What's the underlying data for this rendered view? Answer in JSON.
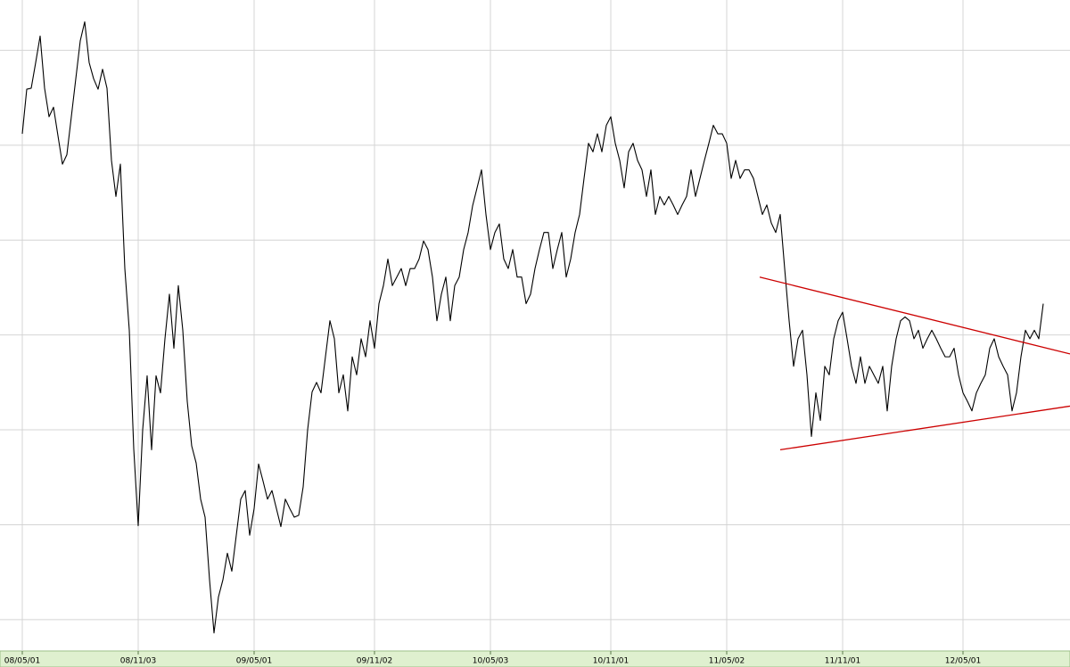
{
  "chart_data": {
    "type": "line",
    "categories": [
      "08/05/01",
      null,
      null,
      null,
      null,
      null,
      null,
      null,
      null,
      null,
      null,
      null,
      null,
      null,
      null,
      null,
      null,
      null,
      null,
      null,
      null,
      null,
      null,
      null,
      null,
      null,
      "08/11/03",
      null,
      null,
      null,
      null,
      null,
      null,
      null,
      null,
      null,
      null,
      null,
      null,
      null,
      null,
      null,
      null,
      null,
      null,
      null,
      null,
      null,
      null,
      null,
      null,
      null,
      "09/05/01",
      null,
      null,
      null,
      null,
      null,
      null,
      null,
      null,
      null,
      null,
      null,
      null,
      null,
      null,
      null,
      null,
      null,
      null,
      null,
      null,
      null,
      null,
      null,
      null,
      null,
      null,
      "09/11/02",
      null,
      null,
      null,
      null,
      null,
      null,
      null,
      null,
      null,
      null,
      null,
      null,
      null,
      null,
      null,
      null,
      null,
      null,
      null,
      null,
      null,
      null,
      null,
      null,
      null,
      "10/05/03",
      null,
      null,
      null,
      null,
      null,
      null,
      null,
      null,
      null,
      null,
      null,
      null,
      null,
      null,
      null,
      null,
      null,
      null,
      null,
      null,
      null,
      null,
      null,
      null,
      null,
      null,
      "10/11/01",
      null,
      null,
      null,
      null,
      null,
      null,
      null,
      null,
      null,
      null,
      null,
      null,
      null,
      null,
      null,
      null,
      null,
      null,
      null,
      null,
      null,
      null,
      null,
      null,
      null,
      "11/05/02",
      null,
      null,
      null,
      null,
      null,
      null,
      null,
      null,
      null,
      null,
      null,
      null,
      null,
      null,
      null,
      null,
      null,
      null,
      null,
      null,
      null,
      null,
      null,
      null,
      null,
      "11/11/01",
      null,
      null,
      null,
      null,
      null,
      null,
      null,
      null,
      null,
      null,
      null,
      null,
      null,
      null,
      null,
      null,
      null,
      null,
      null,
      null,
      null,
      null,
      null,
      null,
      null,
      null,
      "12/05/01",
      null,
      null,
      null,
      null,
      null,
      null,
      null,
      null,
      null,
      null,
      null,
      null,
      null,
      null,
      null,
      null,
      null,
      null
    ],
    "series": [
      {
        "color": "#000000",
        "values": [
          61.2,
          65.9,
          66,
          68.7,
          71.5,
          66,
          63,
          64,
          61,
          58,
          59,
          63,
          67,
          71,
          73,
          68.7,
          67,
          65.9,
          68,
          66,
          58.4,
          54.6,
          58,
          47,
          40.5,
          28,
          19.9,
          30,
          35.7,
          27.9,
          35.7,
          33.9,
          39.6,
          44.3,
          38.6,
          45.2,
          40.5,
          33,
          28.3,
          26.5,
          22.7,
          20.8,
          14.2,
          8.6,
          12.4,
          14.2,
          17,
          15.1,
          18.9,
          22.7,
          23.6,
          18.9,
          21.7,
          26.4,
          24.6,
          22.7,
          23.6,
          21.7,
          19.8,
          22.7,
          21.7,
          20.8,
          21,
          24,
          30,
          34,
          35,
          33.9,
          37.7,
          41.5,
          39.6,
          33.9,
          35.8,
          32,
          37.7,
          35.8,
          39.6,
          37.7,
          41.5,
          38.6,
          43.3,
          45.2,
          48,
          45.2,
          46.1,
          47,
          45.2,
          47,
          47,
          48,
          49.9,
          49,
          46.1,
          41.5,
          44.3,
          46.1,
          41.5,
          45.2,
          46.1,
          49,
          50.8,
          53.6,
          55.5,
          57.4,
          52.7,
          49,
          50.8,
          51.7,
          48,
          47,
          49,
          46.1,
          46.1,
          43.3,
          44.3,
          47,
          49,
          50.8,
          50.8,
          47,
          49,
          50.8,
          46.1,
          48,
          50.8,
          52.7,
          56.5,
          60.2,
          59.3,
          61.2,
          59.3,
          62.1,
          63,
          60.2,
          58.4,
          55.5,
          59.3,
          60.2,
          58.4,
          57.4,
          54.6,
          57.4,
          52.7,
          54.6,
          53.7,
          54.6,
          53.7,
          52.7,
          53.7,
          54.6,
          57.4,
          54.6,
          56.5,
          58.4,
          60.2,
          62.1,
          61.2,
          61.2,
          60.2,
          56.5,
          58.4,
          56.5,
          57.4,
          57.4,
          56.5,
          54.6,
          52.7,
          53.7,
          51.8,
          50.8,
          52.7,
          47,
          41.5,
          36.7,
          39.6,
          40.5,
          35.8,
          29.3,
          33.9,
          31,
          36.7,
          35.8,
          39.6,
          41.5,
          42.4,
          39.6,
          36.7,
          34.9,
          37.7,
          34.9,
          36.7,
          35.8,
          34.9,
          36.7,
          32,
          36.7,
          39.6,
          41.5,
          41.9,
          41.5,
          39.6,
          40.5,
          38.6,
          39.6,
          40.5,
          39.6,
          38.6,
          37.7,
          37.7,
          38.6,
          35.8,
          33.9,
          33,
          32,
          33.9,
          34.9,
          35.8,
          38.6,
          39.6,
          37.7,
          36.7,
          35.8,
          32,
          33.9,
          37.7,
          40.5,
          39.6,
          40.5,
          39.6,
          43.3
        ]
      }
    ],
    "trendlines": [
      {
        "color": "#cc0000",
        "x": [
          165.4,
          235
        ],
        "y": [
          46.1,
          38
        ]
      },
      {
        "color": "#cc0000",
        "x": [
          170,
          235
        ],
        "y": [
          27.9,
          32.5
        ]
      }
    ],
    "ylim": [
      6.7,
      75.3
    ],
    "yticks": [
      10,
      20,
      30,
      40,
      50,
      60,
      70
    ],
    "grid": true
  }
}
